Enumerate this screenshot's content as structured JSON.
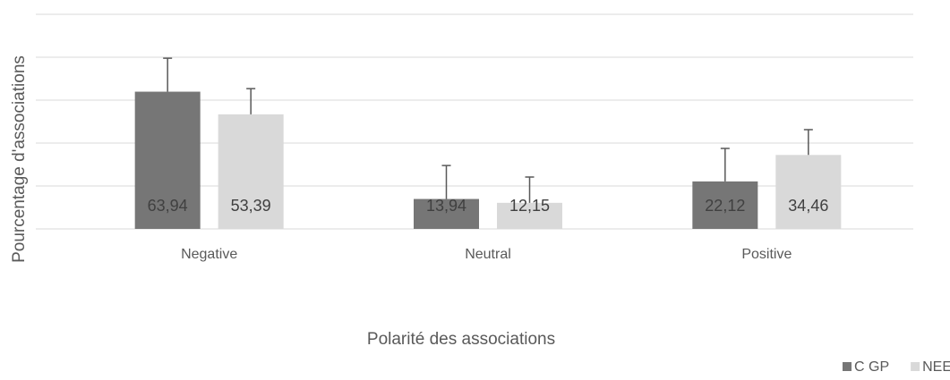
{
  "chart_data": {
    "type": "bar",
    "x_label": "Polarité des associations",
    "y_label": "Pourcentage d'associations",
    "categories": [
      "Negative",
      "Neutral",
      "Positive"
    ],
    "series": [
      {
        "name": "C GP",
        "color": "#767676",
        "values": [
          63.94,
          13.94,
          22.12
        ],
        "value_labels": [
          "63,94",
          "13,94",
          "22,12"
        ],
        "errors": [
          15.6,
          15.6,
          15.4
        ]
      },
      {
        "name": "NEETs",
        "color": "#d9d9d9",
        "values": [
          53.39,
          12.15,
          34.46
        ],
        "value_labels": [
          "53,39",
          "12,15",
          "34,46"
        ],
        "errors": [
          12,
          12,
          11.8
        ]
      }
    ],
    "ylim": [
      0,
      100
    ],
    "yticks": [
      0,
      20,
      40,
      60,
      80,
      100
    ],
    "grid": true,
    "legend": "bottom-right"
  }
}
